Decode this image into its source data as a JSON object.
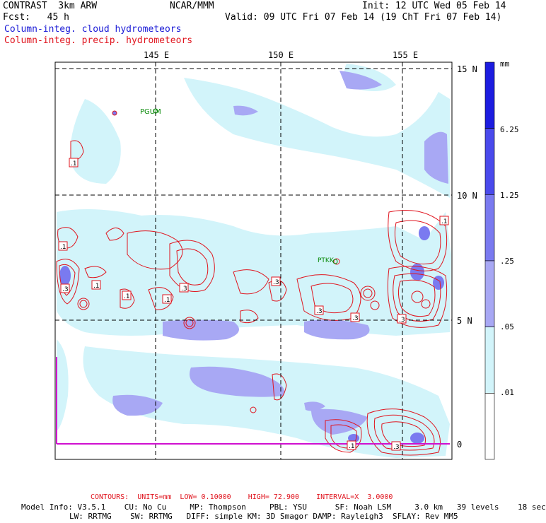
{
  "header": {
    "title_left": "CONTRAST  3km ARW",
    "title_center": "NCAR/MMM",
    "init": "Init: 12 UTC Wed 05 Feb 14",
    "forecast": "Fcst:   45 h",
    "valid": "Valid: 09 UTC Fri 07 Feb 14 (19 ChT Fri 07 Feb 14)",
    "legend_cloud": "Column-integ. cloud hydrometeors",
    "legend_precip": "Column-integ. precip. hydrometeors"
  },
  "map": {
    "lon_labels": [
      "145 E",
      "150 E",
      "155 E"
    ],
    "lat_labels": [
      "15 N",
      "10 N",
      "5 N",
      "0"
    ],
    "stations": [
      "PGUM",
      "PTKK"
    ],
    "contour_labels": [
      ".1",
      ".1",
      ".3",
      ".1",
      ".1",
      ".3",
      ".1",
      ".3",
      ".3",
      ".3",
      ".1",
      ".3",
      ".1",
      ".3",
      ".1"
    ]
  },
  "colorbar": {
    "unit": "mm",
    "levels": [
      "6.25",
      "1.25",
      ".25",
      ".05",
      ".01"
    ],
    "colors": [
      "#1c1ce0",
      "#4a4aec",
      "#7a7af0",
      "#a8a8f4",
      "#d2f4fa",
      "#ffffff"
    ]
  },
  "footer": {
    "contours": "CONTOURS:  UNITS=mm  LOW= 0.10000    HIGH= 72.900    INTERVAL=X  3.0000",
    "model_line1": "Model Info: V3.5.1    CU: No Cu     MP: Thompson     PBL: YSU      SF: Noah LSM     3.0 km   39 levels    18 sec",
    "model_line2": "LW: RRTMG    SW: RRTMG   DIFF: simple KM: 3D Smagor DAMP: Rayleigh3  SFLAY: Rev MM5"
  },
  "colors": {
    "cloud_light": "#d2f4fa",
    "cloud_mid": "#a8a8f4",
    "cloud_dark": "#7a7af0",
    "precip_contour": "#e0141e",
    "boundary": "#d010d0",
    "station": "#0a8a0a"
  }
}
